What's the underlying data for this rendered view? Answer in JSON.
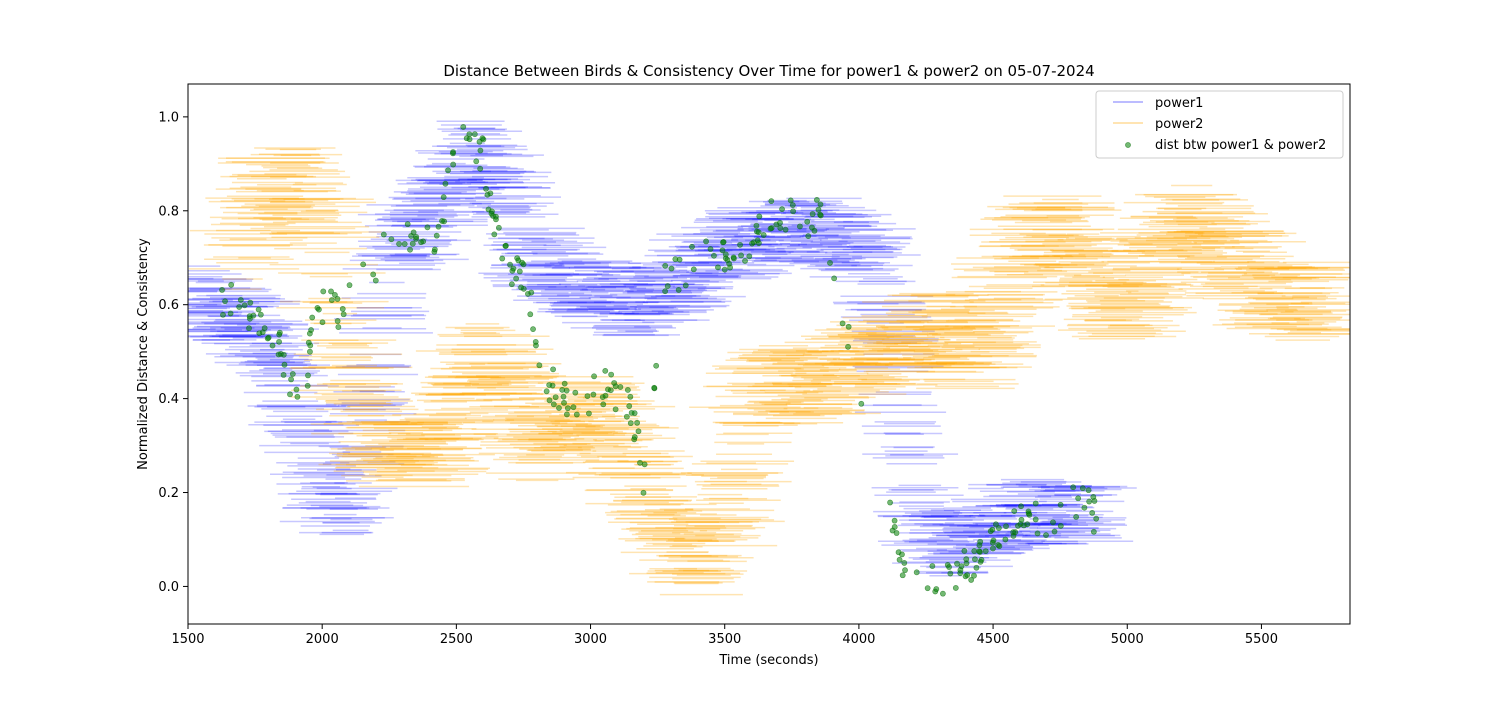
{
  "chart_data": {
    "type": "scatter",
    "title": "Distance Between Birds & Consistency Over Time for power1 & power2 on 05-07-2024",
    "xlabel": "Time (seconds)",
    "ylabel": "Normalized Distance & Consistency",
    "xlim": [
      1500,
      5830
    ],
    "ylim": [
      -0.08,
      1.07
    ],
    "x_ticks": [
      "1500",
      "2000",
      "2500",
      "3000",
      "3500",
      "4000",
      "4500",
      "5000",
      "5500"
    ],
    "x_tick_values": [
      1500,
      2000,
      2500,
      3000,
      3500,
      4000,
      4500,
      5000,
      5500
    ],
    "y_ticks": [
      "0.0",
      "0.2",
      "0.4",
      "0.6",
      "0.8",
      "1.0"
    ],
    "y_tick_values": [
      0.0,
      0.2,
      0.4,
      0.6,
      0.8,
      1.0
    ],
    "grid": false,
    "legend_position": "top-right",
    "series": [
      {
        "name": "power1",
        "kind": "horizontal-segments",
        "color": "#0000ff",
        "keyframes": [
          [
            1500,
            0.62
          ],
          [
            1560,
            0.6
          ],
          [
            1650,
            0.58
          ],
          [
            1750,
            0.55
          ],
          [
            1830,
            0.5
          ],
          [
            1880,
            0.43
          ],
          [
            1930,
            0.37
          ],
          [
            2000,
            0.2
          ],
          [
            2100,
            0.17
          ],
          [
            2200,
            0.45
          ],
          [
            2280,
            0.74
          ],
          [
            2380,
            0.75
          ],
          [
            2480,
            0.85
          ],
          [
            2560,
            0.93
          ],
          [
            2660,
            0.86
          ],
          [
            2760,
            0.72
          ],
          [
            2860,
            0.67
          ],
          [
            2960,
            0.64
          ],
          [
            3060,
            0.62
          ],
          [
            3160,
            0.6
          ],
          [
            3260,
            0.62
          ],
          [
            3360,
            0.66
          ],
          [
            3460,
            0.7
          ],
          [
            3560,
            0.73
          ],
          [
            3660,
            0.75
          ],
          [
            3760,
            0.76
          ],
          [
            3860,
            0.76
          ],
          [
            3960,
            0.74
          ],
          [
            4060,
            0.7
          ],
          [
            4110,
            0.55
          ],
          [
            4160,
            0.4
          ],
          [
            4210,
            0.2
          ],
          [
            4260,
            0.1
          ],
          [
            4330,
            0.08
          ],
          [
            4400,
            0.1
          ],
          [
            4460,
            0.14
          ],
          [
            4560,
            0.15
          ],
          [
            4660,
            0.16
          ],
          [
            4760,
            0.16
          ],
          [
            4860,
            0.15
          ]
        ],
        "seg_len": [
          120,
          360
        ],
        "spread": 0.07,
        "alpha": 0.22
      },
      {
        "name": "power2",
        "kind": "horizontal-segments",
        "color": "#ffa500",
        "keyframes": [
          [
            1700,
            0.7
          ],
          [
            1800,
            0.83
          ],
          [
            1900,
            0.86
          ],
          [
            2000,
            0.78
          ],
          [
            2050,
            0.55
          ],
          [
            2100,
            0.45
          ],
          [
            2200,
            0.32
          ],
          [
            2300,
            0.28
          ],
          [
            2400,
            0.3
          ],
          [
            2500,
            0.38
          ],
          [
            2600,
            0.5
          ],
          [
            2700,
            0.42
          ],
          [
            2800,
            0.3
          ],
          [
            2900,
            0.36
          ],
          [
            3000,
            0.38
          ],
          [
            3100,
            0.32
          ],
          [
            3200,
            0.22
          ],
          [
            3300,
            0.12
          ],
          [
            3400,
            0.05
          ],
          [
            3460,
            0.08
          ],
          [
            3530,
            0.2
          ],
          [
            3600,
            0.38
          ],
          [
            3700,
            0.44
          ],
          [
            3800,
            0.42
          ],
          [
            3900,
            0.45
          ],
          [
            4000,
            0.48
          ],
          [
            4100,
            0.5
          ],
          [
            4200,
            0.52
          ],
          [
            4300,
            0.55
          ],
          [
            4400,
            0.5
          ],
          [
            4500,
            0.55
          ],
          [
            4550,
            0.63
          ],
          [
            4650,
            0.73
          ],
          [
            4750,
            0.76
          ],
          [
            4850,
            0.7
          ],
          [
            4950,
            0.6
          ],
          [
            5050,
            0.62
          ],
          [
            5150,
            0.75
          ],
          [
            5250,
            0.78
          ],
          [
            5350,
            0.72
          ],
          [
            5450,
            0.66
          ],
          [
            5550,
            0.62
          ],
          [
            5650,
            0.6
          ],
          [
            5750,
            0.62
          ]
        ],
        "seg_len": [
          120,
          420
        ],
        "spread": 0.08,
        "alpha": 0.3
      },
      {
        "name": "dist btw power1 & power2",
        "kind": "points",
        "color": "#008000",
        "keyframes": [
          [
            1620,
            0.62
          ],
          [
            1680,
            0.6
          ],
          [
            1750,
            0.57
          ],
          [
            1820,
            0.55
          ],
          [
            1860,
            0.48
          ],
          [
            1890,
            0.42
          ],
          [
            1920,
            0.38
          ],
          [
            1950,
            0.48
          ],
          [
            1970,
            0.59
          ],
          [
            2040,
            0.59
          ],
          [
            2060,
            0.59
          ],
          [
            2270,
            0.74
          ],
          [
            2340,
            0.75
          ],
          [
            2400,
            0.74
          ],
          [
            2440,
            0.76
          ],
          [
            2480,
            0.88
          ],
          [
            2530,
            0.95
          ],
          [
            2600,
            0.92
          ],
          [
            2630,
            0.8
          ],
          [
            2660,
            0.72
          ],
          [
            2700,
            0.68
          ],
          [
            2760,
            0.66
          ],
          [
            2800,
            0.52
          ],
          [
            2850,
            0.43
          ],
          [
            2900,
            0.4
          ],
          [
            2950,
            0.38
          ],
          [
            3000,
            0.41
          ],
          [
            3060,
            0.43
          ],
          [
            3120,
            0.4
          ],
          [
            3160,
            0.36
          ],
          [
            3200,
            0.22
          ],
          [
            3280,
            0.68
          ],
          [
            3330,
            0.67
          ],
          [
            3400,
            0.7
          ],
          [
            3460,
            0.72
          ],
          [
            3520,
            0.71
          ],
          [
            3580,
            0.73
          ],
          [
            3640,
            0.78
          ],
          [
            3700,
            0.8
          ],
          [
            3760,
            0.78
          ],
          [
            3820,
            0.78
          ],
          [
            3860,
            0.79
          ],
          [
            4110,
            0.16
          ],
          [
            4140,
            0.1
          ],
          [
            4170,
            0.04
          ],
          [
            4250,
            0.03
          ],
          [
            4330,
            0.02
          ],
          [
            4400,
            0.04
          ],
          [
            4430,
            0.05
          ],
          [
            4460,
            0.07
          ],
          [
            4500,
            0.12
          ],
          [
            4550,
            0.13
          ],
          [
            4600,
            0.14
          ],
          [
            4650,
            0.15
          ],
          [
            4700,
            0.14
          ],
          [
            4750,
            0.15
          ],
          [
            4800,
            0.19
          ],
          [
            4850,
            0.17
          ],
          [
            4890,
            0.14
          ]
        ],
        "n": 330,
        "jitter": 0.04,
        "radius": 2.6,
        "alpha": 0.55
      }
    ]
  }
}
